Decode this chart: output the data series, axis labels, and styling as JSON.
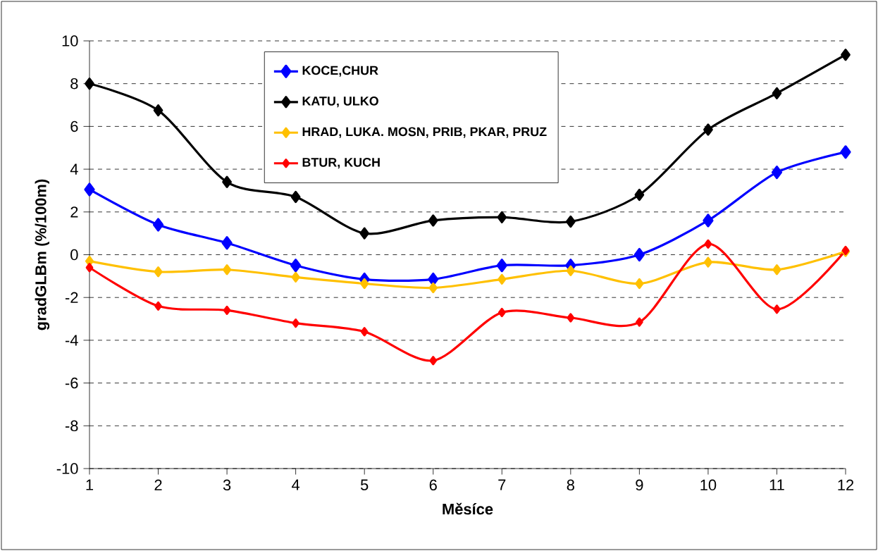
{
  "chart_data": {
    "type": "line",
    "xlabel": "Měsíce",
    "ylabel": "gradGLBm    (%/100m)",
    "x": [
      1,
      2,
      3,
      4,
      5,
      6,
      7,
      8,
      9,
      10,
      11,
      12
    ],
    "series": [
      {
        "name": "KOCE,CHUR",
        "color": "#0000ff",
        "values": [
          3.05,
          1.4,
          0.55,
          -0.5,
          -1.15,
          -1.15,
          -0.5,
          -0.5,
          0.0,
          1.6,
          3.85,
          4.8
        ]
      },
      {
        "name": "KATU, ULKO",
        "color": "#000000",
        "values": [
          8.0,
          6.75,
          3.4,
          2.7,
          1.0,
          1.6,
          1.75,
          1.55,
          2.8,
          5.85,
          7.55,
          9.35
        ]
      },
      {
        "name": "HRAD, LUKA. MOSN, PRIB, PKAR, PRUZ",
        "color": "#ffc000",
        "values": [
          -0.3,
          -0.8,
          -0.7,
          -1.05,
          -1.35,
          -1.55,
          -1.15,
          -0.75,
          -1.35,
          -0.35,
          -0.7,
          0.15
        ]
      },
      {
        "name": "BTUR, KUCH",
        "color": "#ff0000",
        "values": [
          -0.6,
          -2.4,
          -2.6,
          -3.2,
          -3.6,
          -4.95,
          -2.7,
          -2.95,
          -3.15,
          0.5,
          -2.55,
          0.2
        ]
      }
    ],
    "xlim": [
      1,
      12
    ],
    "xticks": [
      1,
      2,
      3,
      4,
      5,
      6,
      7,
      8,
      9,
      10,
      11,
      12
    ],
    "ylim": [
      -10,
      10
    ],
    "yticks": [
      -10,
      -8,
      -6,
      -4,
      -2,
      0,
      2,
      4,
      6,
      8,
      10
    ],
    "grid": "y",
    "legend": "top",
    "marker": "diamond",
    "line_style": "solid"
  }
}
